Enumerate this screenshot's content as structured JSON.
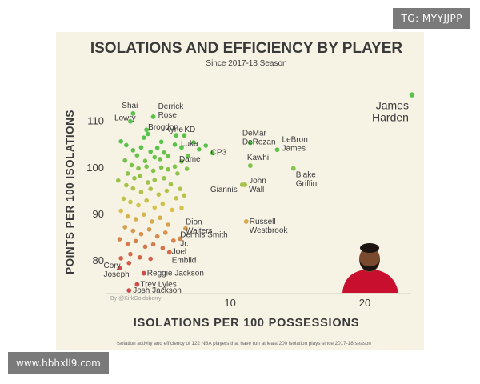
{
  "watermarks": {
    "top": "TG: MYYJJPP",
    "bottom": "www.hbhxll9.com"
  },
  "chart_data": {
    "type": "scatter",
    "title": "ISOLATIONS AND EFFICIENCY BY PLAYER",
    "subtitle": "Since 2017-18 Season",
    "xlabel": "ISOLATIONS PER 100 POSSESSIONS",
    "ylabel": "POINTS PER 100 ISOLATIONS",
    "credit": "By @KirkGoldsberry",
    "footnote": "Isolation activity and efficiency of 122 NBA players that have run at least 200 isolation plays since 2017-18 season",
    "xlim": [
      1,
      23.8
    ],
    "ylim": [
      73,
      118
    ],
    "x_ticks": [
      10,
      20
    ],
    "y_ticks": [
      80,
      90,
      100,
      110
    ],
    "grid": false,
    "color_scale": {
      "low": "#d24a4a",
      "mid": "#d8c24a",
      "high": "#58c34a"
    },
    "labeled_points": [
      {
        "name": "James Harden",
        "x": 23.5,
        "y": 115.5
      },
      {
        "name": "Shai",
        "x": 2.8,
        "y": 111.5
      },
      {
        "name": "Derrick Rose",
        "x": 4.3,
        "y": 110.8
      },
      {
        "name": "Lowry",
        "x": 2.6,
        "y": 109.8
      },
      {
        "name": "Brogdon",
        "x": 3.8,
        "y": 108
      },
      {
        "name": "Kyrie",
        "x": 6.0,
        "y": 106.8
      },
      {
        "name": "KD",
        "x": 6.6,
        "y": 106.8
      },
      {
        "name": "Luka",
        "x": 6.4,
        "y": 104.2
      },
      {
        "name": "DeMar DeRozan",
        "x": 11.5,
        "y": 105.2
      },
      {
        "name": "LeBron James",
        "x": 13.5,
        "y": 103.7
      },
      {
        "name": "CP3",
        "x": 8.7,
        "y": 103
      },
      {
        "name": "Dame",
        "x": 6.4,
        "y": 101.2
      },
      {
        "name": "Kawhi",
        "x": 11.5,
        "y": 100.3
      },
      {
        "name": "Blake Griffin",
        "x": 14.7,
        "y": 99.7
      },
      {
        "name": "Giannis",
        "x": 10.9,
        "y": 96.2
      },
      {
        "name": "John Wall",
        "x": 11.1,
        "y": 96.2
      },
      {
        "name": "Dion Waiters",
        "x": 6.7,
        "y": 86.8
      },
      {
        "name": "Russell Westbrook",
        "x": 11.2,
        "y": 88.3
      },
      {
        "name": "Dennis Smith Jr.",
        "x": 6.3,
        "y": 84.6
      },
      {
        "name": "Joel Embiid",
        "x": 5.5,
        "y": 81.7
      },
      {
        "name": "Cory Joseph",
        "x": 1.8,
        "y": 78.3
      },
      {
        "name": "Reggie Jackson",
        "x": 3.6,
        "y": 77.2
      },
      {
        "name": "Trey Lyles",
        "x": 3.1,
        "y": 74.8
      },
      {
        "name": "Josh Jackson",
        "x": 2.5,
        "y": 73.5
      }
    ],
    "other_points": [
      [
        1.9,
        105.5
      ],
      [
        2.3,
        104.7
      ],
      [
        2.8,
        103.6
      ],
      [
        3.1,
        102.5
      ],
      [
        3.4,
        104.2
      ],
      [
        3.7,
        101.3
      ],
      [
        4.1,
        103.3
      ],
      [
        4.4,
        102.1
      ],
      [
        4.8,
        101.7
      ],
      [
        5.1,
        103.1
      ],
      [
        5.4,
        102.4
      ],
      [
        4.6,
        104.1
      ],
      [
        2.2,
        101.4
      ],
      [
        2.7,
        100.4
      ],
      [
        3.2,
        99.7
      ],
      [
        3.8,
        100.1
      ],
      [
        4.3,
        99.2
      ],
      [
        4.9,
        99.9
      ],
      [
        5.4,
        99.5
      ],
      [
        5.9,
        100.1
      ],
      [
        2.4,
        98.6
      ],
      [
        2.9,
        97.6
      ],
      [
        3.3,
        98.1
      ],
      [
        3.9,
        96.7
      ],
      [
        4.4,
        97.2
      ],
      [
        5.1,
        97.6
      ],
      [
        5.6,
        96.3
      ],
      [
        6.1,
        98.6
      ],
      [
        2.3,
        96.1
      ],
      [
        2.8,
        95.4
      ],
      [
        3.4,
        94.6
      ],
      [
        4.1,
        95.3
      ],
      [
        4.7,
        94.1
      ],
      [
        5.3,
        94.9
      ],
      [
        6.0,
        93.3
      ],
      [
        6.3,
        95.3
      ],
      [
        2.1,
        93.2
      ],
      [
        2.6,
        92.5
      ],
      [
        3.2,
        91.8
      ],
      [
        3.8,
        92.8
      ],
      [
        4.4,
        91.3
      ],
      [
        5.0,
        92.1
      ],
      [
        5.7,
        90.8
      ],
      [
        1.9,
        90.6
      ],
      [
        2.4,
        89.4
      ],
      [
        3.0,
        88.8
      ],
      [
        3.6,
        89.8
      ],
      [
        4.2,
        88.3
      ],
      [
        4.8,
        89.1
      ],
      [
        5.4,
        87.6
      ],
      [
        2.2,
        87.1
      ],
      [
        2.8,
        86.3
      ],
      [
        3.4,
        85.6
      ],
      [
        4.0,
        86.6
      ],
      [
        4.6,
        85.1
      ],
      [
        5.2,
        85.9
      ],
      [
        1.8,
        84.5
      ],
      [
        2.4,
        83.5
      ],
      [
        3.0,
        84.1
      ],
      [
        3.7,
        82.9
      ],
      [
        4.3,
        83.4
      ],
      [
        5.0,
        82.6
      ],
      [
        2.6,
        81.3
      ],
      [
        3.3,
        80.6
      ],
      [
        4.1,
        80.3
      ],
      [
        1.9,
        80.4
      ],
      [
        2.5,
        79.4
      ],
      [
        5.8,
        84.2
      ],
      [
        6.4,
        91.2
      ],
      [
        6.9,
        102.4
      ],
      [
        7.3,
        105.3
      ],
      [
        7.7,
        103.8
      ],
      [
        8.2,
        104.6
      ],
      [
        3.6,
        106.3
      ],
      [
        4.9,
        105.4
      ],
      [
        5.9,
        104.8
      ],
      [
        6.8,
        99.6
      ],
      [
        1.7,
        97.1
      ],
      [
        6.6,
        93.9
      ],
      [
        3.9,
        107.1
      ]
    ]
  }
}
